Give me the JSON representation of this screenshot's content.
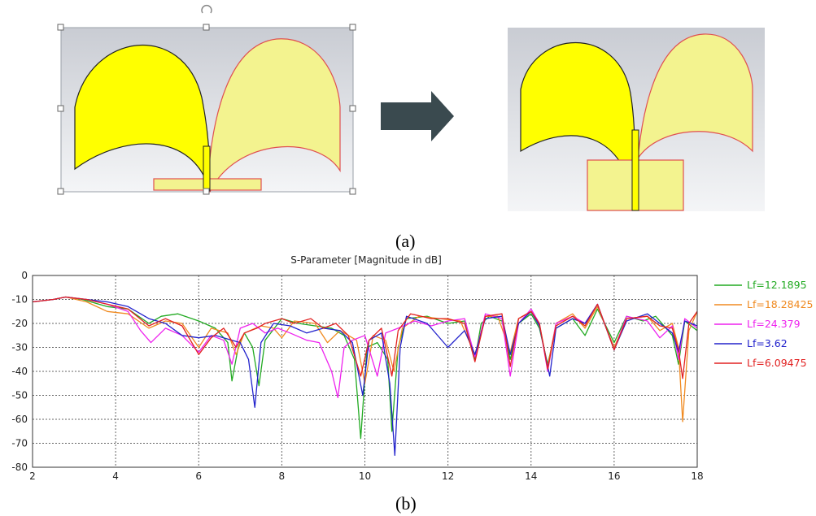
{
  "figure": {
    "caption_a": "(a)",
    "caption_b": "(b)"
  },
  "colors": {
    "antenna_fill": "#ffff00",
    "antenna_fill_light": "#f3f38f",
    "antenna_outline_red": "#e05050",
    "arrow": "#3a4a4f"
  },
  "chart_data": {
    "type": "line",
    "title": "S-Parameter [Magnitude in dB]",
    "xlabel": "",
    "ylabel": "",
    "xlim": [
      2,
      18
    ],
    "ylim": [
      -80,
      0
    ],
    "xticks": [
      2,
      4,
      6,
      8,
      10,
      12,
      14,
      16,
      18
    ],
    "yticks": [
      0,
      -10,
      -20,
      -30,
      -40,
      -50,
      -60,
      -70,
      -80
    ],
    "grid": true,
    "legend_position": "right",
    "series": [
      {
        "name": "Lf=12.1895",
        "color": "#22aa22",
        "points": [
          [
            2,
            -11
          ],
          [
            2.5,
            -10
          ],
          [
            2.8,
            -9
          ],
          [
            3.2,
            -10
          ],
          [
            3.8,
            -13
          ],
          [
            4.3,
            -14
          ],
          [
            4.8,
            -20
          ],
          [
            5.1,
            -17
          ],
          [
            5.5,
            -16
          ],
          [
            6.0,
            -19
          ],
          [
            6.4,
            -22
          ],
          [
            6.7,
            -28
          ],
          [
            6.8,
            -44
          ],
          [
            6.95,
            -30
          ],
          [
            7.1,
            -24
          ],
          [
            7.3,
            -30
          ],
          [
            7.45,
            -46
          ],
          [
            7.6,
            -27
          ],
          [
            8.0,
            -18
          ],
          [
            8.4,
            -20
          ],
          [
            8.8,
            -21
          ],
          [
            9.2,
            -22
          ],
          [
            9.5,
            -25
          ],
          [
            9.75,
            -35
          ],
          [
            9.9,
            -68
          ],
          [
            10.05,
            -30
          ],
          [
            10.3,
            -28
          ],
          [
            10.55,
            -35
          ],
          [
            10.65,
            -65
          ],
          [
            10.8,
            -30
          ],
          [
            11.0,
            -18
          ],
          [
            11.5,
            -17
          ],
          [
            12.0,
            -20
          ],
          [
            12.4,
            -19
          ],
          [
            12.65,
            -35
          ],
          [
            12.8,
            -20
          ],
          [
            13.0,
            -17
          ],
          [
            13.3,
            -19
          ],
          [
            13.5,
            -35
          ],
          [
            13.7,
            -20
          ],
          [
            14.0,
            -16
          ],
          [
            14.2,
            -22
          ],
          [
            14.4,
            -37
          ],
          [
            14.6,
            -22
          ],
          [
            15.0,
            -18
          ],
          [
            15.3,
            -25
          ],
          [
            15.6,
            -14
          ],
          [
            16.0,
            -28
          ],
          [
            16.3,
            -17
          ],
          [
            16.7,
            -19
          ],
          [
            17.0,
            -17
          ],
          [
            17.4,
            -25
          ],
          [
            17.55,
            -37
          ],
          [
            17.7,
            -19
          ],
          [
            18,
            -23
          ]
        ]
      },
      {
        "name": "Lf=18.28425",
        "color": "#f08a20",
        "points": [
          [
            2,
            -11
          ],
          [
            2.5,
            -10
          ],
          [
            2.8,
            -9
          ],
          [
            3.3,
            -11
          ],
          [
            3.8,
            -15
          ],
          [
            4.3,
            -16
          ],
          [
            4.8,
            -22
          ],
          [
            5.2,
            -19
          ],
          [
            5.6,
            -20
          ],
          [
            6.0,
            -30
          ],
          [
            6.3,
            -22
          ],
          [
            6.7,
            -24
          ],
          [
            6.9,
            -33
          ],
          [
            7.1,
            -24
          ],
          [
            7.5,
            -21
          ],
          [
            7.8,
            -22
          ],
          [
            8.0,
            -26
          ],
          [
            8.3,
            -19
          ],
          [
            8.8,
            -20
          ],
          [
            9.1,
            -28
          ],
          [
            9.4,
            -23
          ],
          [
            9.8,
            -27
          ],
          [
            10.0,
            -45
          ],
          [
            10.2,
            -25
          ],
          [
            10.5,
            -27
          ],
          [
            10.7,
            -40
          ],
          [
            10.9,
            -22
          ],
          [
            11.3,
            -17
          ],
          [
            11.8,
            -18
          ],
          [
            12.3,
            -19
          ],
          [
            12.65,
            -33
          ],
          [
            12.9,
            -17
          ],
          [
            13.2,
            -17
          ],
          [
            13.5,
            -32
          ],
          [
            13.7,
            -18
          ],
          [
            14.0,
            -15
          ],
          [
            14.2,
            -20
          ],
          [
            14.4,
            -38
          ],
          [
            14.6,
            -20
          ],
          [
            15.0,
            -16
          ],
          [
            15.3,
            -22
          ],
          [
            15.6,
            -13
          ],
          [
            16.0,
            -30
          ],
          [
            16.3,
            -18
          ],
          [
            16.8,
            -17
          ],
          [
            17.1,
            -23
          ],
          [
            17.4,
            -20
          ],
          [
            17.55,
            -30
          ],
          [
            17.65,
            -61
          ],
          [
            17.8,
            -23
          ],
          [
            18,
            -15
          ]
        ]
      },
      {
        "name": "Lf=24.379",
        "color": "#ee22ee",
        "points": [
          [
            2,
            -11
          ],
          [
            2.5,
            -10
          ],
          [
            2.8,
            -9
          ],
          [
            3.3,
            -10
          ],
          [
            3.8,
            -12
          ],
          [
            4.3,
            -15
          ],
          [
            4.6,
            -23
          ],
          [
            4.85,
            -28
          ],
          [
            5.2,
            -22
          ],
          [
            5.6,
            -25
          ],
          [
            6.0,
            -32
          ],
          [
            6.3,
            -25
          ],
          [
            6.6,
            -27
          ],
          [
            6.8,
            -37
          ],
          [
            7.0,
            -22
          ],
          [
            7.3,
            -20
          ],
          [
            7.6,
            -24
          ],
          [
            7.9,
            -22
          ],
          [
            8.2,
            -24
          ],
          [
            8.6,
            -27
          ],
          [
            8.9,
            -28
          ],
          [
            9.2,
            -40
          ],
          [
            9.35,
            -51
          ],
          [
            9.5,
            -30
          ],
          [
            9.7,
            -27
          ],
          [
            10.0,
            -25
          ],
          [
            10.3,
            -42
          ],
          [
            10.5,
            -24
          ],
          [
            10.8,
            -22
          ],
          [
            11.2,
            -19
          ],
          [
            11.6,
            -21
          ],
          [
            12.0,
            -19
          ],
          [
            12.4,
            -18
          ],
          [
            12.65,
            -34
          ],
          [
            12.9,
            -16
          ],
          [
            13.3,
            -18
          ],
          [
            13.5,
            -42
          ],
          [
            13.7,
            -20
          ],
          [
            14.0,
            -14
          ],
          [
            14.2,
            -20
          ],
          [
            14.4,
            -40
          ],
          [
            14.6,
            -20
          ],
          [
            15.0,
            -17
          ],
          [
            15.3,
            -20
          ],
          [
            15.6,
            -12
          ],
          [
            16.0,
            -31
          ],
          [
            16.3,
            -17
          ],
          [
            16.8,
            -19
          ],
          [
            17.1,
            -26
          ],
          [
            17.4,
            -21
          ],
          [
            17.55,
            -35
          ],
          [
            17.7,
            -18
          ],
          [
            18,
            -22
          ]
        ]
      },
      {
        "name": "Lf=3.62",
        "color": "#2222cc",
        "points": [
          [
            2,
            -11
          ],
          [
            2.5,
            -10
          ],
          [
            2.8,
            -9
          ],
          [
            3.3,
            -10
          ],
          [
            3.8,
            -11
          ],
          [
            4.3,
            -13
          ],
          [
            4.8,
            -18
          ],
          [
            5.2,
            -20
          ],
          [
            5.6,
            -25
          ],
          [
            6.0,
            -26
          ],
          [
            6.4,
            -25
          ],
          [
            6.8,
            -27
          ],
          [
            7.0,
            -28
          ],
          [
            7.2,
            -35
          ],
          [
            7.35,
            -55
          ],
          [
            7.5,
            -28
          ],
          [
            7.8,
            -20
          ],
          [
            8.2,
            -21
          ],
          [
            8.6,
            -24
          ],
          [
            9.0,
            -22
          ],
          [
            9.4,
            -23
          ],
          [
            9.7,
            -28
          ],
          [
            9.95,
            -50
          ],
          [
            10.1,
            -27
          ],
          [
            10.4,
            -24
          ],
          [
            10.6,
            -45
          ],
          [
            10.72,
            -75
          ],
          [
            10.85,
            -30
          ],
          [
            11.0,
            -17
          ],
          [
            11.5,
            -20
          ],
          [
            12.0,
            -30
          ],
          [
            12.4,
            -23
          ],
          [
            12.65,
            -33
          ],
          [
            12.9,
            -18
          ],
          [
            13.3,
            -17
          ],
          [
            13.5,
            -33
          ],
          [
            13.7,
            -20
          ],
          [
            14.0,
            -15
          ],
          [
            14.2,
            -21
          ],
          [
            14.45,
            -42
          ],
          [
            14.6,
            -22
          ],
          [
            15.0,
            -18
          ],
          [
            15.3,
            -20
          ],
          [
            15.6,
            -12
          ],
          [
            16.0,
            -31
          ],
          [
            16.3,
            -19
          ],
          [
            16.8,
            -16
          ],
          [
            17.1,
            -20
          ],
          [
            17.4,
            -24
          ],
          [
            17.55,
            -32
          ],
          [
            17.7,
            -19
          ],
          [
            18,
            -21
          ]
        ]
      },
      {
        "name": "Lf=6.09475",
        "color": "#e22222",
        "points": [
          [
            2,
            -11
          ],
          [
            2.5,
            -10
          ],
          [
            2.8,
            -9
          ],
          [
            3.3,
            -10
          ],
          [
            3.8,
            -12
          ],
          [
            4.3,
            -14
          ],
          [
            4.8,
            -21
          ],
          [
            5.2,
            -18
          ],
          [
            5.6,
            -21
          ],
          [
            6.0,
            -33
          ],
          [
            6.3,
            -26
          ],
          [
            6.6,
            -22
          ],
          [
            6.9,
            -30
          ],
          [
            7.1,
            -24
          ],
          [
            7.4,
            -22
          ],
          [
            7.6,
            -20
          ],
          [
            8.0,
            -18
          ],
          [
            8.3,
            -20
          ],
          [
            8.7,
            -18
          ],
          [
            9.0,
            -22
          ],
          [
            9.3,
            -20
          ],
          [
            9.6,
            -25
          ],
          [
            9.9,
            -42
          ],
          [
            10.1,
            -27
          ],
          [
            10.4,
            -22
          ],
          [
            10.65,
            -42
          ],
          [
            10.8,
            -23
          ],
          [
            11.1,
            -16
          ],
          [
            11.6,
            -18
          ],
          [
            12.0,
            -18
          ],
          [
            12.4,
            -20
          ],
          [
            12.65,
            -36
          ],
          [
            12.9,
            -17
          ],
          [
            13.3,
            -16
          ],
          [
            13.5,
            -38
          ],
          [
            13.7,
            -18
          ],
          [
            14.0,
            -15
          ],
          [
            14.2,
            -20
          ],
          [
            14.4,
            -39
          ],
          [
            14.6,
            -21
          ],
          [
            15.0,
            -17
          ],
          [
            15.3,
            -21
          ],
          [
            15.6,
            -12
          ],
          [
            16.0,
            -31
          ],
          [
            16.3,
            -18
          ],
          [
            16.8,
            -17
          ],
          [
            17.1,
            -21
          ],
          [
            17.4,
            -22
          ],
          [
            17.55,
            -31
          ],
          [
            17.65,
            -43
          ],
          [
            17.8,
            -20
          ],
          [
            18,
            -15
          ]
        ]
      }
    ]
  }
}
